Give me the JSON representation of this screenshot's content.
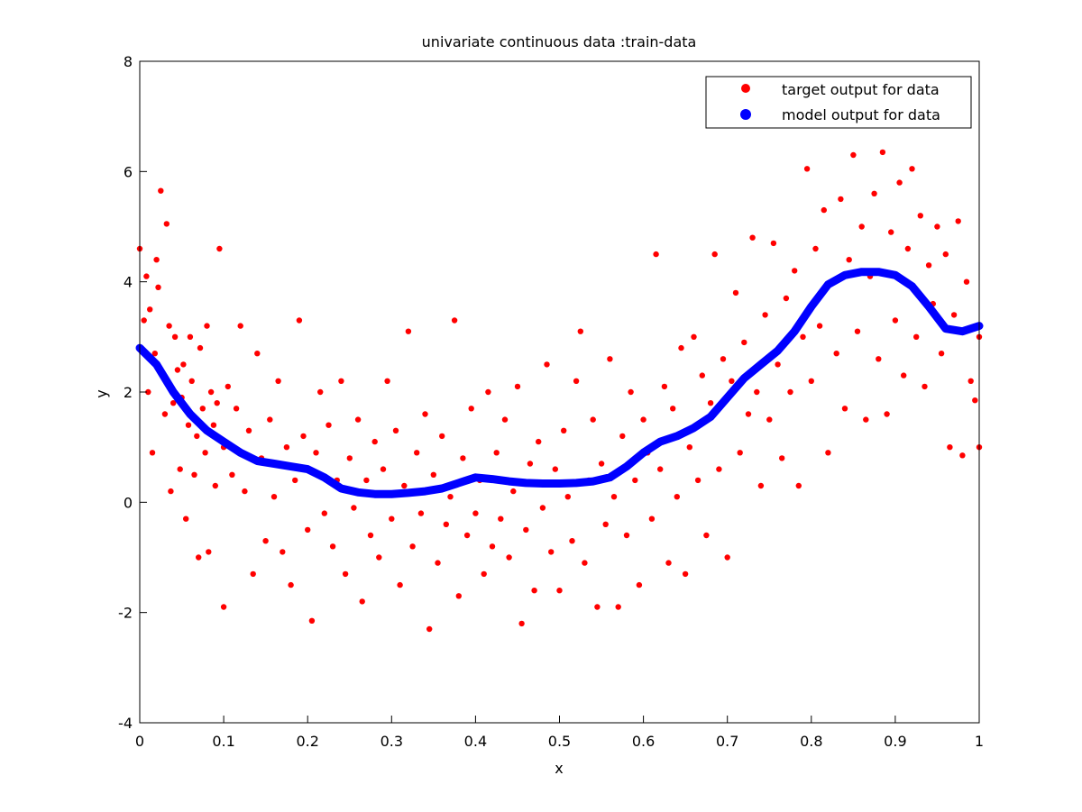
{
  "chart_data": {
    "type": "scatter",
    "title": "univariate continuous data :train-data",
    "xlabel": "x",
    "ylabel": "y",
    "xlim": [
      0,
      1
    ],
    "ylim": [
      -4,
      8
    ],
    "xticks": [
      0,
      0.1,
      0.2,
      0.3,
      0.4,
      0.5,
      0.6,
      0.7,
      0.8,
      0.9,
      1
    ],
    "xtick_labels": [
      "0",
      "0.1",
      "0.2",
      "0.3",
      "0.4",
      "0.5",
      "0.6",
      "0.7",
      "0.8",
      "0.9",
      "1"
    ],
    "yticks": [
      -4,
      -2,
      0,
      2,
      4,
      6,
      8
    ],
    "ytick_labels": [
      "-4",
      "-2",
      "0",
      "2",
      "4",
      "6",
      "8"
    ],
    "grid": false,
    "legend_position": "top-right",
    "series": [
      {
        "name": "target output for data",
        "style": "markers",
        "color": "#ff0000",
        "points": [
          [
            0,
            4.6
          ],
          [
            0.005,
            3.3
          ],
          [
            0.008,
            4.1
          ],
          [
            0.01,
            2.0
          ],
          [
            0.012,
            3.5
          ],
          [
            0.015,
            0.9
          ],
          [
            0.018,
            2.7
          ],
          [
            0.02,
            4.4
          ],
          [
            0.022,
            3.9
          ],
          [
            0.025,
            5.65
          ],
          [
            0.027,
            2.3
          ],
          [
            0.03,
            1.6
          ],
          [
            0.032,
            5.05
          ],
          [
            0.035,
            3.2
          ],
          [
            0.037,
            0.2
          ],
          [
            0.04,
            1.8
          ],
          [
            0.042,
            3.0
          ],
          [
            0.045,
            2.4
          ],
          [
            0.048,
            0.6
          ],
          [
            0.05,
            1.9
          ],
          [
            0.052,
            2.5
          ],
          [
            0.055,
            -0.3
          ],
          [
            0.058,
            1.4
          ],
          [
            0.06,
            3.0
          ],
          [
            0.062,
            2.2
          ],
          [
            0.065,
            0.5
          ],
          [
            0.068,
            1.2
          ],
          [
            0.07,
            -1.0
          ],
          [
            0.072,
            2.8
          ],
          [
            0.075,
            1.7
          ],
          [
            0.078,
            0.9
          ],
          [
            0.08,
            3.2
          ],
          [
            0.082,
            -0.9
          ],
          [
            0.085,
            2.0
          ],
          [
            0.088,
            1.4
          ],
          [
            0.09,
            0.3
          ],
          [
            0.092,
            1.8
          ],
          [
            0.095,
            4.6
          ],
          [
            0.1,
            -1.9
          ],
          [
            0.1,
            1.0
          ],
          [
            0.105,
            2.1
          ],
          [
            0.11,
            0.5
          ],
          [
            0.115,
            1.7
          ],
          [
            0.12,
            3.2
          ],
          [
            0.125,
            0.2
          ],
          [
            0.13,
            1.3
          ],
          [
            0.135,
            -1.3
          ],
          [
            0.14,
            2.7
          ],
          [
            0.145,
            0.8
          ],
          [
            0.15,
            -0.7
          ],
          [
            0.155,
            1.5
          ],
          [
            0.16,
            0.1
          ],
          [
            0.165,
            2.2
          ],
          [
            0.17,
            -0.9
          ],
          [
            0.175,
            1.0
          ],
          [
            0.18,
            -1.5
          ],
          [
            0.185,
            0.4
          ],
          [
            0.19,
            3.3
          ],
          [
            0.195,
            1.2
          ],
          [
            0.2,
            -0.5
          ],
          [
            0.205,
            -2.15
          ],
          [
            0.21,
            0.9
          ],
          [
            0.215,
            2.0
          ],
          [
            0.22,
            -0.2
          ],
          [
            0.225,
            1.4
          ],
          [
            0.23,
            -0.8
          ],
          [
            0.235,
            0.4
          ],
          [
            0.24,
            2.2
          ],
          [
            0.245,
            -1.3
          ],
          [
            0.25,
            0.8
          ],
          [
            0.255,
            -0.1
          ],
          [
            0.26,
            1.5
          ],
          [
            0.265,
            -1.8
          ],
          [
            0.27,
            0.4
          ],
          [
            0.275,
            -0.6
          ],
          [
            0.28,
            1.1
          ],
          [
            0.285,
            -1.0
          ],
          [
            0.29,
            0.6
          ],
          [
            0.295,
            2.2
          ],
          [
            0.3,
            -0.3
          ],
          [
            0.305,
            1.3
          ],
          [
            0.31,
            -1.5
          ],
          [
            0.315,
            0.3
          ],
          [
            0.32,
            3.1
          ],
          [
            0.325,
            -0.8
          ],
          [
            0.33,
            0.9
          ],
          [
            0.335,
            -0.2
          ],
          [
            0.34,
            1.6
          ],
          [
            0.345,
            -2.3
          ],
          [
            0.35,
            0.5
          ],
          [
            0.355,
            -1.1
          ],
          [
            0.36,
            1.2
          ],
          [
            0.365,
            -0.4
          ],
          [
            0.37,
            0.1
          ],
          [
            0.375,
            3.3
          ],
          [
            0.38,
            -1.7
          ],
          [
            0.385,
            0.8
          ],
          [
            0.39,
            -0.6
          ],
          [
            0.395,
            1.7
          ],
          [
            0.4,
            -0.2
          ],
          [
            0.405,
            0.4
          ],
          [
            0.41,
            -1.3
          ],
          [
            0.415,
            2.0
          ],
          [
            0.42,
            -0.8
          ],
          [
            0.425,
            0.9
          ],
          [
            0.43,
            -0.3
          ],
          [
            0.435,
            1.5
          ],
          [
            0.44,
            -1.0
          ],
          [
            0.445,
            0.2
          ],
          [
            0.45,
            2.1
          ],
          [
            0.455,
            -2.2
          ],
          [
            0.46,
            -0.5
          ],
          [
            0.465,
            0.7
          ],
          [
            0.47,
            -1.6
          ],
          [
            0.475,
            1.1
          ],
          [
            0.48,
            -0.1
          ],
          [
            0.485,
            2.5
          ],
          [
            0.49,
            -0.9
          ],
          [
            0.495,
            0.6
          ],
          [
            0.5,
            -1.6
          ],
          [
            0.505,
            1.3
          ],
          [
            0.51,
            0.1
          ],
          [
            0.515,
            -0.7
          ],
          [
            0.52,
            2.2
          ],
          [
            0.525,
            3.1
          ],
          [
            0.53,
            -1.1
          ],
          [
            0.535,
            0.4
          ],
          [
            0.54,
            1.5
          ],
          [
            0.545,
            -1.9
          ],
          [
            0.55,
            0.7
          ],
          [
            0.555,
            -0.4
          ],
          [
            0.56,
            2.6
          ],
          [
            0.565,
            0.1
          ],
          [
            0.57,
            -1.9
          ],
          [
            0.575,
            1.2
          ],
          [
            0.58,
            -0.6
          ],
          [
            0.585,
            2.0
          ],
          [
            0.59,
            0.4
          ],
          [
            0.595,
            -1.5
          ],
          [
            0.6,
            1.5
          ],
          [
            0.605,
            0.9
          ],
          [
            0.61,
            -0.3
          ],
          [
            0.615,
            4.5
          ],
          [
            0.62,
            0.6
          ],
          [
            0.625,
            2.1
          ],
          [
            0.63,
            -1.1
          ],
          [
            0.635,
            1.7
          ],
          [
            0.64,
            0.1
          ],
          [
            0.645,
            2.8
          ],
          [
            0.65,
            -1.3
          ],
          [
            0.655,
            1.0
          ],
          [
            0.66,
            3.0
          ],
          [
            0.665,
            0.4
          ],
          [
            0.67,
            2.3
          ],
          [
            0.675,
            -0.6
          ],
          [
            0.68,
            1.8
          ],
          [
            0.685,
            4.5
          ],
          [
            0.69,
            0.6
          ],
          [
            0.695,
            2.6
          ],
          [
            0.7,
            -1.0
          ],
          [
            0.705,
            2.2
          ],
          [
            0.71,
            3.8
          ],
          [
            0.715,
            0.9
          ],
          [
            0.72,
            2.9
          ],
          [
            0.725,
            1.6
          ],
          [
            0.73,
            4.8
          ],
          [
            0.735,
            2.0
          ],
          [
            0.74,
            0.3
          ],
          [
            0.745,
            3.4
          ],
          [
            0.75,
            1.5
          ],
          [
            0.755,
            4.7
          ],
          [
            0.76,
            2.5
          ],
          [
            0.765,
            0.8
          ],
          [
            0.77,
            3.7
          ],
          [
            0.775,
            2.0
          ],
          [
            0.78,
            4.2
          ],
          [
            0.785,
            0.3
          ],
          [
            0.79,
            3.0
          ],
          [
            0.795,
            6.05
          ],
          [
            0.8,
            2.2
          ],
          [
            0.805,
            4.6
          ],
          [
            0.81,
            3.2
          ],
          [
            0.815,
            5.3
          ],
          [
            0.82,
            0.9
          ],
          [
            0.825,
            4.0
          ],
          [
            0.83,
            2.7
          ],
          [
            0.835,
            5.5
          ],
          [
            0.84,
            1.7
          ],
          [
            0.845,
            4.4
          ],
          [
            0.85,
            6.3
          ],
          [
            0.855,
            3.1
          ],
          [
            0.86,
            5.0
          ],
          [
            0.865,
            1.5
          ],
          [
            0.87,
            4.1
          ],
          [
            0.875,
            5.6
          ],
          [
            0.88,
            2.6
          ],
          [
            0.885,
            6.35
          ],
          [
            0.89,
            1.6
          ],
          [
            0.895,
            4.9
          ],
          [
            0.9,
            3.3
          ],
          [
            0.905,
            5.8
          ],
          [
            0.91,
            2.3
          ],
          [
            0.915,
            4.6
          ],
          [
            0.92,
            6.05
          ],
          [
            0.925,
            3.0
          ],
          [
            0.93,
            5.2
          ],
          [
            0.935,
            2.1
          ],
          [
            0.94,
            4.3
          ],
          [
            0.945,
            3.6
          ],
          [
            0.95,
            5.0
          ],
          [
            0.955,
            2.7
          ],
          [
            0.96,
            4.5
          ],
          [
            0.965,
            1.0
          ],
          [
            0.97,
            3.4
          ],
          [
            0.975,
            5.1
          ],
          [
            0.98,
            0.85
          ],
          [
            0.985,
            4.0
          ],
          [
            0.99,
            2.2
          ],
          [
            0.995,
            1.85
          ],
          [
            1.0,
            1.0
          ],
          [
            1.0,
            3.0
          ]
        ]
      },
      {
        "name": "model output for data",
        "style": "thick-line",
        "color": "#0000ff",
        "x": [
          0,
          0.02,
          0.04,
          0.06,
          0.08,
          0.1,
          0.12,
          0.14,
          0.16,
          0.18,
          0.2,
          0.22,
          0.24,
          0.26,
          0.28,
          0.3,
          0.32,
          0.34,
          0.36,
          0.38,
          0.4,
          0.42,
          0.44,
          0.46,
          0.48,
          0.5,
          0.52,
          0.54,
          0.56,
          0.58,
          0.6,
          0.62,
          0.64,
          0.66,
          0.68,
          0.7,
          0.72,
          0.74,
          0.76,
          0.78,
          0.8,
          0.82,
          0.84,
          0.86,
          0.88,
          0.9,
          0.92,
          0.94,
          0.96,
          0.98,
          1.0
        ],
        "y": [
          2.8,
          2.5,
          2.0,
          1.6,
          1.3,
          1.1,
          0.9,
          0.75,
          0.7,
          0.65,
          0.6,
          0.45,
          0.25,
          0.18,
          0.15,
          0.15,
          0.17,
          0.2,
          0.25,
          0.35,
          0.45,
          0.42,
          0.38,
          0.35,
          0.34,
          0.34,
          0.35,
          0.38,
          0.45,
          0.65,
          0.9,
          1.1,
          1.2,
          1.35,
          1.55,
          1.9,
          2.25,
          2.5,
          2.75,
          3.1,
          3.55,
          3.95,
          4.12,
          4.18,
          4.18,
          4.12,
          3.92,
          3.55,
          3.15,
          3.1,
          3.2
        ]
      }
    ]
  }
}
